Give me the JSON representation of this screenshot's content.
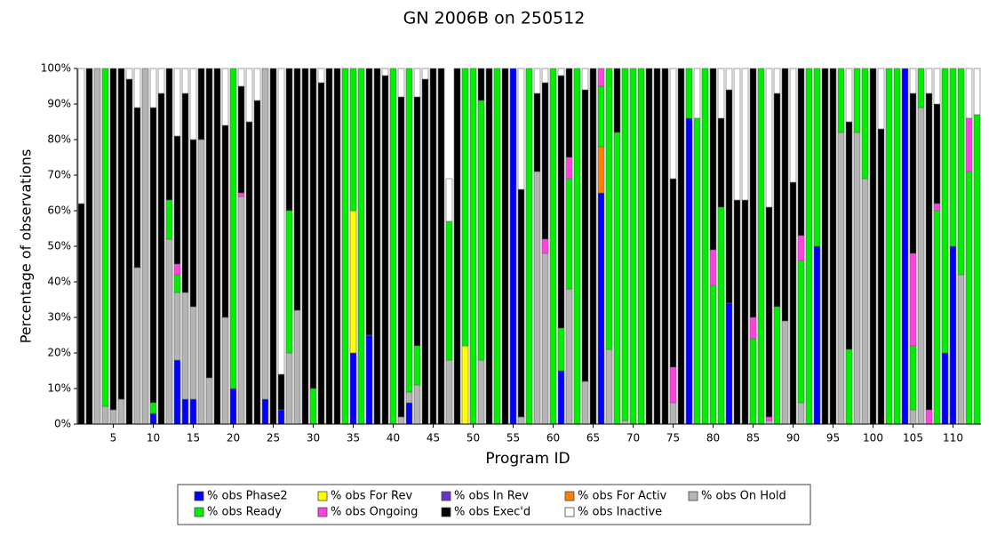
{
  "chart_data": {
    "type": "stacked_bar",
    "title": "GN 2006B on 250512",
    "x_label": "Program ID",
    "y_label": "Percentage of observations",
    "categories": [
      null,
      null,
      null,
      null,
      "5",
      null,
      null,
      null,
      null,
      "10",
      null,
      null,
      null,
      null,
      "15",
      null,
      null,
      null,
      null,
      "20",
      null,
      null,
      null,
      null,
      "25",
      null,
      null,
      null,
      null,
      "30",
      null,
      null,
      null,
      null,
      "35",
      null,
      null,
      null,
      null,
      "40",
      null,
      null,
      null,
      null,
      "45",
      null,
      null,
      null,
      null,
      "50",
      null,
      null,
      null,
      null,
      "55",
      null,
      null,
      null,
      null,
      "60",
      null,
      null,
      null,
      null,
      "65",
      null,
      null,
      null,
      null,
      "70",
      null,
      null,
      null,
      null,
      "75",
      null,
      null,
      null,
      null,
      "80",
      null,
      null,
      null,
      null,
      "85",
      null,
      null,
      null,
      null,
      "90",
      null,
      null,
      null,
      null,
      "95",
      null,
      null,
      null,
      null,
      "100",
      null,
      null,
      null,
      null,
      "105",
      null,
      null,
      null,
      null,
      "110",
      null,
      null,
      null
    ],
    "ylim": [
      0,
      100
    ],
    "yticks": [
      {
        "value": 0,
        "label": "0%"
      },
      {
        "value": 10,
        "label": "10%"
      },
      {
        "value": 20,
        "label": "20%"
      },
      {
        "value": 30,
        "label": "30%"
      },
      {
        "value": 40,
        "label": "40%"
      },
      {
        "value": 50,
        "label": "50%"
      },
      {
        "value": 60,
        "label": "60%"
      },
      {
        "value": 70,
        "label": "70%"
      },
      {
        "value": 80,
        "label": "80%"
      },
      {
        "value": 90,
        "label": "90%"
      },
      {
        "value": 100,
        "label": "100%"
      }
    ],
    "series": [
      {
        "name": "% obs Phase2",
        "color": "#0000ff",
        "values": [
          0,
          0,
          0,
          0,
          0,
          0,
          0,
          0,
          0,
          3,
          0,
          0,
          18,
          7,
          7,
          0,
          0,
          0,
          0,
          10,
          0,
          0,
          0,
          7,
          0,
          4,
          0,
          0,
          0,
          0,
          0,
          0,
          0,
          0,
          20,
          0,
          25,
          0,
          0,
          0,
          0,
          6,
          0,
          0,
          0,
          0,
          0,
          0,
          0,
          0,
          0,
          0,
          0,
          0,
          100,
          0,
          0,
          0,
          0,
          0,
          15,
          0,
          0,
          0,
          0,
          65,
          0,
          0,
          0,
          0,
          0,
          0,
          0,
          0,
          0,
          0,
          86,
          0,
          0,
          0,
          0,
          34,
          0,
          0,
          0,
          0,
          0,
          0,
          0,
          0,
          0,
          0,
          50,
          0,
          0,
          0,
          0,
          0,
          0,
          0,
          0,
          0,
          0,
          100,
          0,
          0,
          0,
          0,
          20,
          50,
          0,
          0,
          0
        ]
      },
      {
        "name": "% obs For Rev",
        "color": "#ffff00",
        "values": [
          0,
          0,
          0,
          0,
          0,
          0,
          0,
          0,
          0,
          0,
          0,
          0,
          0,
          0,
          0,
          0,
          0,
          0,
          0,
          0,
          0,
          0,
          0,
          0,
          0,
          0,
          0,
          0,
          0,
          0,
          0,
          0,
          0,
          0,
          40,
          0,
          0,
          0,
          0,
          0,
          0,
          0,
          0,
          0,
          0,
          0,
          0,
          0,
          22,
          0,
          0,
          0,
          0,
          0,
          0,
          0,
          0,
          0,
          0,
          0,
          0,
          0,
          0,
          0,
          0,
          0,
          0,
          0,
          0,
          0,
          0,
          0,
          0,
          0,
          0,
          0,
          0,
          0,
          0,
          0,
          0,
          0,
          0,
          0,
          0,
          0,
          0,
          0,
          0,
          0,
          0,
          0,
          0,
          0,
          0,
          0,
          0,
          0,
          0,
          0,
          0,
          0,
          0,
          0,
          0,
          0,
          0,
          0,
          0,
          0,
          0,
          0,
          0
        ]
      },
      {
        "name": "% obs In Rev",
        "color": "#6633cc",
        "values": [
          0,
          0,
          0,
          0,
          0,
          0,
          0,
          0,
          0,
          0,
          0,
          0,
          0,
          0,
          0,
          0,
          0,
          0,
          0,
          0,
          0,
          0,
          0,
          0,
          0,
          0,
          0,
          0,
          0,
          0,
          0,
          0,
          0,
          0,
          0,
          0,
          0,
          0,
          0,
          0,
          0,
          0,
          0,
          0,
          0,
          0,
          0,
          0,
          0,
          0,
          0,
          0,
          0,
          0,
          0,
          0,
          0,
          0,
          0,
          0,
          0,
          0,
          0,
          0,
          0,
          0,
          0,
          0,
          0,
          0,
          0,
          0,
          0,
          0,
          0,
          0,
          0,
          0,
          0,
          0,
          0,
          0,
          0,
          0,
          0,
          0,
          0,
          0,
          0,
          0,
          0,
          0,
          0,
          0,
          0,
          0,
          0,
          0,
          0,
          0,
          0,
          0,
          0,
          0,
          0,
          0,
          0,
          0,
          0,
          0,
          0,
          0,
          0
        ]
      },
      {
        "name": "% obs For Activ",
        "color": "#ff8000",
        "values": [
          0,
          0,
          0,
          0,
          0,
          0,
          0,
          0,
          0,
          0,
          0,
          0,
          0,
          0,
          0,
          0,
          0,
          0,
          0,
          0,
          0,
          0,
          0,
          0,
          0,
          0,
          0,
          0,
          0,
          0,
          0,
          0,
          0,
          0,
          0,
          0,
          0,
          0,
          0,
          0,
          0,
          0,
          0,
          0,
          0,
          0,
          0,
          0,
          0,
          0,
          0,
          0,
          0,
          0,
          0,
          0,
          0,
          0,
          0,
          0,
          0,
          0,
          0,
          0,
          0,
          13,
          0,
          0,
          0,
          0,
          0,
          0,
          0,
          0,
          0,
          0,
          0,
          0,
          0,
          0,
          0,
          0,
          0,
          0,
          0,
          0,
          0,
          0,
          0,
          0,
          0,
          0,
          0,
          0,
          0,
          0,
          0,
          0,
          0,
          0,
          0,
          0,
          0,
          0,
          0,
          0,
          0,
          0,
          0,
          0,
          0,
          0,
          0
        ]
      },
      {
        "name": "% obs On Hold",
        "color": "#b4b4b4",
        "values": [
          0,
          0,
          100,
          5,
          4,
          7,
          0,
          44,
          100,
          0,
          0,
          52,
          19,
          30,
          26,
          80,
          13,
          0,
          30,
          0,
          64,
          0,
          0,
          93,
          0,
          0,
          20,
          32,
          0,
          0,
          0,
          0,
          0,
          0,
          0,
          0,
          0,
          0,
          0,
          0,
          2,
          3,
          11,
          0,
          0,
          0,
          18,
          0,
          0,
          0,
          18,
          0,
          0,
          0,
          0,
          2,
          0,
          71,
          48,
          0,
          0,
          38,
          0,
          12,
          0,
          0,
          21,
          0,
          1,
          0,
          0,
          0,
          0,
          0,
          6,
          0,
          0,
          0,
          0,
          0,
          0,
          0,
          0,
          0,
          0,
          0,
          1,
          0,
          29,
          0,
          6,
          0,
          0,
          0,
          0,
          82,
          0,
          82,
          69,
          0,
          0,
          0,
          0,
          0,
          4,
          89,
          0,
          0,
          0,
          0,
          42,
          0,
          0
        ]
      },
      {
        "name": "% obs Ready",
        "color": "#00ee00",
        "values": [
          0,
          0,
          0,
          95,
          0,
          0,
          0,
          0,
          0,
          3,
          0,
          11,
          5,
          0,
          0,
          0,
          0,
          0,
          0,
          90,
          0,
          0,
          0,
          0,
          0,
          0,
          40,
          0,
          0,
          10,
          0,
          0,
          0,
          100,
          40,
          100,
          0,
          0,
          0,
          100,
          0,
          91,
          11,
          0,
          0,
          0,
          39,
          0,
          78,
          100,
          73,
          0,
          100,
          0,
          0,
          0,
          100,
          0,
          0,
          100,
          12,
          31,
          100,
          0,
          0,
          17,
          79,
          82,
          99,
          100,
          100,
          0,
          0,
          0,
          0,
          0,
          14,
          86,
          100,
          39,
          61,
          0,
          0,
          0,
          24,
          100,
          0,
          33,
          0,
          0,
          40,
          100,
          50,
          0,
          0,
          18,
          21,
          18,
          31,
          0,
          0,
          100,
          100,
          0,
          18,
          11,
          0,
          60,
          80,
          50,
          58,
          71,
          87
        ]
      },
      {
        "name": "% obs Ongoing",
        "color": "#ff44dd",
        "values": [
          0,
          0,
          0,
          0,
          0,
          0,
          0,
          0,
          0,
          0,
          0,
          0,
          3,
          0,
          0,
          0,
          0,
          0,
          0,
          0,
          1,
          0,
          0,
          0,
          0,
          0,
          0,
          0,
          0,
          0,
          0,
          0,
          0,
          0,
          0,
          0,
          0,
          0,
          0,
          0,
          0,
          0,
          0,
          0,
          0,
          0,
          0,
          0,
          0,
          0,
          0,
          0,
          0,
          0,
          0,
          0,
          0,
          0,
          4,
          0,
          0,
          6,
          0,
          0,
          0,
          5,
          0,
          0,
          0,
          0,
          0,
          0,
          0,
          0,
          10,
          0,
          0,
          0,
          0,
          10,
          0,
          0,
          0,
          0,
          6,
          0,
          1,
          0,
          0,
          0,
          7,
          0,
          0,
          0,
          0,
          0,
          0,
          0,
          0,
          0,
          0,
          0,
          0,
          0,
          26,
          0,
          4,
          2,
          0,
          0,
          0,
          15,
          0
        ]
      },
      {
        "name": "% obs Exec'd",
        "color": "#000000",
        "values": [
          62,
          100,
          0,
          0,
          96,
          93,
          97,
          45,
          0,
          83,
          93,
          37,
          36,
          56,
          47,
          20,
          87,
          100,
          54,
          0,
          30,
          85,
          91,
          0,
          100,
          10,
          40,
          68,
          100,
          90,
          96,
          100,
          100,
          0,
          0,
          0,
          75,
          100,
          98,
          0,
          90,
          0,
          70,
          97,
          100,
          100,
          0,
          100,
          0,
          0,
          9,
          100,
          0,
          100,
          0,
          64,
          0,
          22,
          44,
          0,
          71,
          25,
          0,
          82,
          100,
          0,
          0,
          18,
          0,
          0,
          0,
          100,
          100,
          100,
          53,
          100,
          0,
          0,
          0,
          51,
          25,
          60,
          63,
          63,
          70,
          0,
          59,
          60,
          71,
          68,
          47,
          0,
          0,
          100,
          100,
          0,
          64,
          0,
          0,
          100,
          83,
          0,
          0,
          0,
          45,
          0,
          89,
          28,
          0,
          0,
          0,
          0,
          0
        ]
      },
      {
        "name": "% obs Inactive",
        "color": "#ffffff",
        "values": [
          38,
          0,
          0,
          0,
          0,
          0,
          3,
          11,
          0,
          11,
          7,
          0,
          19,
          7,
          20,
          0,
          0,
          0,
          16,
          0,
          5,
          15,
          9,
          0,
          0,
          86,
          0,
          0,
          0,
          0,
          4,
          0,
          0,
          0,
          0,
          0,
          0,
          0,
          2,
          0,
          8,
          0,
          8,
          3,
          0,
          0,
          12,
          0,
          0,
          0,
          0,
          0,
          0,
          0,
          0,
          34,
          0,
          7,
          4,
          0,
          2,
          0,
          0,
          6,
          0,
          0,
          0,
          0,
          0,
          0,
          0,
          0,
          0,
          0,
          31,
          0,
          0,
          14,
          0,
          0,
          14,
          6,
          37,
          37,
          0,
          0,
          39,
          7,
          0,
          32,
          0,
          0,
          0,
          0,
          0,
          0,
          15,
          0,
          0,
          0,
          17,
          0,
          0,
          0,
          7,
          0,
          7,
          10,
          0,
          0,
          0,
          14,
          13
        ]
      }
    ]
  }
}
